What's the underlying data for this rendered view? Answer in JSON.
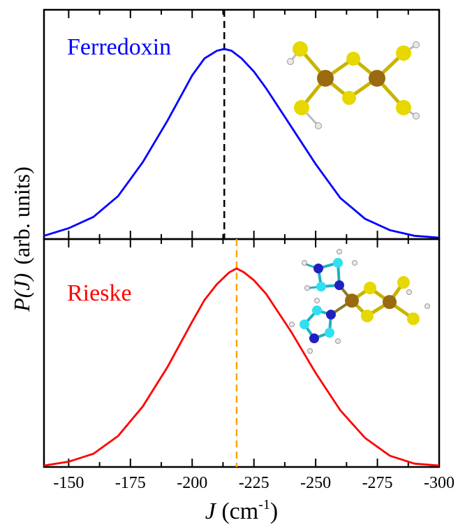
{
  "chart_data": [
    {
      "type": "line",
      "panel": "top",
      "label": "Ferredoxin",
      "peak_marker": -213,
      "x": [
        -140,
        -150,
        -160,
        -170,
        -180,
        -190,
        -200,
        -205,
        -210,
        -213,
        -216,
        -220,
        -225,
        -230,
        -240,
        -250,
        -260,
        -270,
        -280,
        -290,
        -300
      ],
      "series": [
        {
          "label": "Ferredoxin",
          "color": "#0000ff",
          "values": [
            0.01,
            0.05,
            0.11,
            0.22,
            0.4,
            0.62,
            0.86,
            0.95,
            0.99,
            1.0,
            0.99,
            0.95,
            0.88,
            0.79,
            0.59,
            0.39,
            0.21,
            0.1,
            0.04,
            0.01,
            0.0
          ]
        }
      ],
      "marker_color": "#000000"
    },
    {
      "type": "line",
      "panel": "bottom",
      "label": "Rieske",
      "peak_marker": -218,
      "x": [
        -140,
        -150,
        -160,
        -170,
        -180,
        -190,
        -200,
        -205,
        -210,
        -215,
        -218,
        -221,
        -225,
        -230,
        -240,
        -250,
        -260,
        -270,
        -280,
        -290,
        -300
      ],
      "series": [
        {
          "label": "Rieske",
          "color": "#ff0000",
          "values": [
            0.0,
            0.02,
            0.06,
            0.15,
            0.3,
            0.5,
            0.73,
            0.84,
            0.92,
            0.98,
            1.0,
            0.98,
            0.94,
            0.87,
            0.68,
            0.47,
            0.28,
            0.14,
            0.05,
            0.01,
            0.0
          ]
        }
      ],
      "marker_color": "#ffa500"
    }
  ],
  "axes": {
    "xlim": [
      -140,
      -300
    ],
    "xticks": [
      -150,
      -175,
      -200,
      -225,
      -250,
      -275,
      -300
    ],
    "xtick_labels": [
      "-150",
      "-175",
      "-200",
      "-225",
      "-250",
      "-275",
      "-300"
    ],
    "xlabel_main": "J",
    "xlabel_unit_open": " (cm",
    "xlabel_unit_exp": "-1",
    "xlabel_unit_close": ")",
    "ylabel_main": "P(J)",
    "ylabel_unit": "(arb. units)"
  }
}
